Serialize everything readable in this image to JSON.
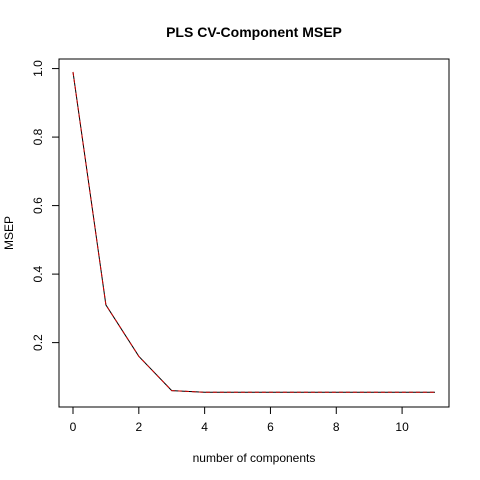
{
  "chart_data": {
    "type": "line",
    "title": "PLS CV-Component MSEP",
    "xlabel": "number of components",
    "ylabel": "MSEP",
    "xlim": [
      0,
      11
    ],
    "ylim": [
      0.05,
      0.99
    ],
    "x_ticks": [
      0,
      2,
      4,
      6,
      8,
      10
    ],
    "y_ticks": [
      0.2,
      0.4,
      0.6,
      0.8,
      1.0
    ],
    "x_tick_labels": [
      "0",
      "2",
      "4",
      "6",
      "8",
      "10"
    ],
    "y_tick_labels": [
      "0.2",
      "0.4",
      "0.6",
      "0.8",
      "1.0"
    ],
    "grid": false,
    "series": [
      {
        "color": "#000000",
        "x": [
          0,
          1,
          2,
          3,
          4,
          5,
          6,
          7,
          8,
          9,
          10,
          11
        ],
        "values": [
          0.99,
          0.31,
          0.16,
          0.06,
          0.055,
          0.055,
          0.055,
          0.055,
          0.055,
          0.055,
          0.055,
          0.055
        ]
      },
      {
        "color": "#cc0000",
        "dashed": true,
        "x": [
          0,
          1,
          2,
          3,
          4,
          5,
          6,
          7,
          8,
          9,
          10,
          11
        ],
        "values": [
          0.99,
          0.31,
          0.16,
          0.06,
          0.055,
          0.055,
          0.055,
          0.055,
          0.055,
          0.055,
          0.055,
          0.055
        ]
      }
    ]
  }
}
